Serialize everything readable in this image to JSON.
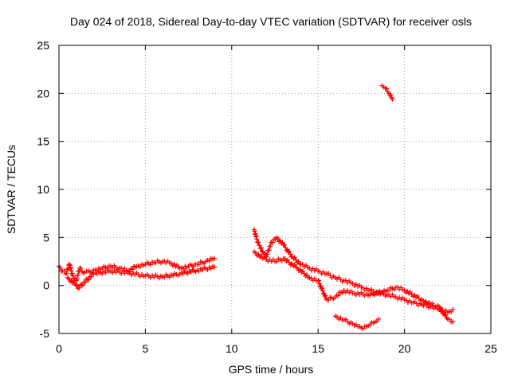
{
  "chart_data": {
    "type": "scatter",
    "title": "Day 024 of 2018, Sidereal Day-to-day VTEC variation (SDTVAR) for receiver osls",
    "xlabel": "GPS time / hours",
    "ylabel": "SDTVAR / TECUs",
    "xlim": [
      0,
      25
    ],
    "ylim": [
      -5,
      25
    ],
    "xticks": [
      0,
      5,
      10,
      15,
      20,
      25
    ],
    "yticks": [
      -5,
      0,
      5,
      10,
      15,
      20,
      25
    ],
    "grid": true,
    "marker": "+",
    "color": "#ff0000",
    "series": [
      {
        "name": "segment-1",
        "x": [
          0.0,
          0.2,
          0.4,
          0.6,
          0.8,
          1.0,
          1.2,
          1.4,
          1.6,
          1.8,
          2.0,
          2.5,
          3.0,
          3.5,
          4.0,
          4.5,
          5.0,
          5.5,
          6.0,
          6.5,
          7.0,
          7.5,
          8.0,
          8.5,
          9.0
        ],
        "y": [
          2.0,
          1.5,
          1.2,
          2.2,
          1.0,
          0.5,
          1.8,
          1.3,
          1.5,
          1.4,
          1.6,
          1.8,
          2.0,
          1.8,
          1.5,
          2.0,
          2.2,
          2.4,
          2.5,
          2.3,
          1.8,
          2.0,
          2.2,
          2.5,
          2.8
        ]
      },
      {
        "name": "segment-1-lower",
        "x": [
          0.5,
          1.0,
          1.1,
          2.0,
          3.0,
          4.0,
          5.0,
          6.0,
          7.0,
          8.0,
          9.0
        ],
        "y": [
          0.8,
          0.0,
          -0.3,
          1.2,
          1.5,
          1.3,
          1.0,
          0.9,
          1.2,
          1.6,
          1.9
        ]
      },
      {
        "name": "segment-2",
        "x": [
          11.3,
          11.5,
          11.8,
          12.0,
          12.3,
          12.6,
          13.0,
          13.5,
          14.0,
          14.5,
          15.0,
          15.5,
          16.0,
          16.5,
          17.0,
          17.5,
          18.0,
          18.5,
          19.0,
          19.5,
          20.0,
          20.5,
          21.0,
          21.5,
          22.0,
          22.5,
          22.8
        ],
        "y": [
          5.8,
          4.5,
          3.5,
          3.0,
          4.5,
          5.0,
          4.2,
          3.0,
          2.2,
          1.8,
          1.5,
          1.2,
          0.8,
          0.5,
          0.2,
          -0.2,
          -0.5,
          -0.8,
          -1.0,
          -1.2,
          -1.5,
          -1.8,
          -2.0,
          -2.2,
          -2.5,
          -2.8,
          -2.5
        ]
      },
      {
        "name": "segment-2-lower",
        "x": [
          11.3,
          11.8,
          12.5,
          13.0,
          13.8,
          14.5,
          15.0,
          15.5,
          16.0,
          16.5,
          17.0,
          18.0,
          19.0,
          19.5,
          20.0,
          21.0,
          21.5,
          22.0,
          22.5,
          22.8
        ],
        "y": [
          3.5,
          2.8,
          2.5,
          2.8,
          1.8,
          0.8,
          0.5,
          -1.5,
          -1.2,
          -0.5,
          -0.8,
          -1.0,
          -0.5,
          -0.2,
          -0.5,
          -1.5,
          -2.0,
          -2.2,
          -3.5,
          -3.8
        ]
      },
      {
        "name": "segment-3-dip",
        "x": [
          16.0,
          16.5,
          17.0,
          17.3,
          17.5,
          17.8,
          18.0,
          18.3,
          18.5
        ],
        "y": [
          -3.2,
          -3.6,
          -4.0,
          -4.3,
          -4.4,
          -4.3,
          -4.1,
          -3.8,
          -3.5
        ]
      },
      {
        "name": "segment-4-high",
        "x": [
          18.7,
          18.9,
          19.1,
          19.3
        ],
        "y": [
          20.8,
          20.5,
          20.0,
          19.4
        ]
      }
    ]
  }
}
